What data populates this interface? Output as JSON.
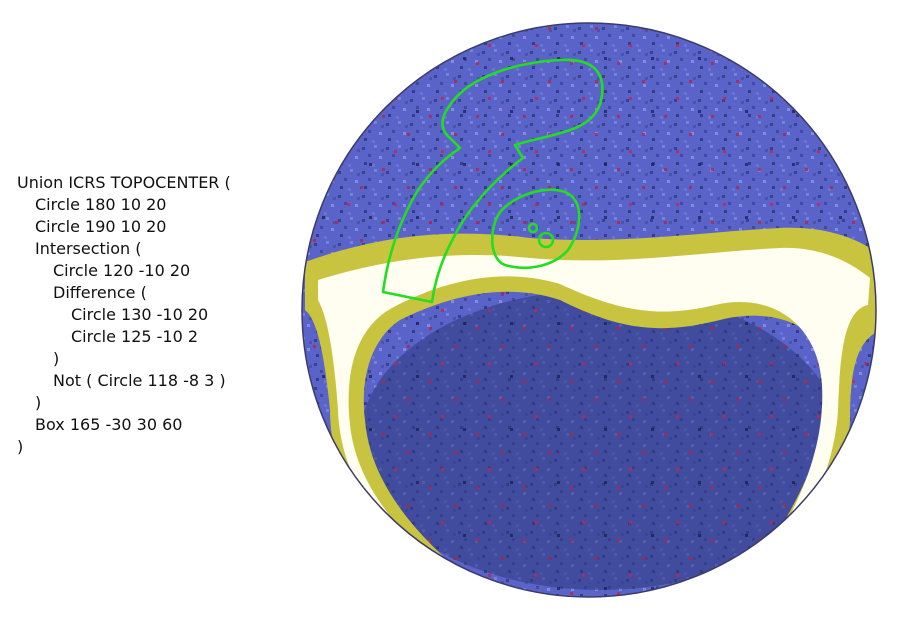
{
  "stc_lines": [
    {
      "indent": 0,
      "text": "Union ICRS TOPOCENTER ("
    },
    {
      "indent": 1,
      "text": "Circle 180 10 20"
    },
    {
      "indent": 1,
      "text": "Circle 190 10 20"
    },
    {
      "indent": 1,
      "text": "Intersection ("
    },
    {
      "indent": 2,
      "text": "Circle 120 -10 20"
    },
    {
      "indent": 2,
      "text": "Difference ("
    },
    {
      "indent": 3,
      "text": "Circle 130 -10 20"
    },
    {
      "indent": 3,
      "text": "Circle 125 -10 2"
    },
    {
      "indent": 2,
      "text": ")"
    },
    {
      "indent": 2,
      "text": "Not ( Circle 118 -8 3 )"
    },
    {
      "indent": 1,
      "text": ")"
    },
    {
      "indent": 1,
      "text": "Box 165 -30 30 60"
    },
    {
      "indent": 0,
      "text": ")"
    }
  ],
  "colors": {
    "sky_background": "#5a63c8",
    "sky_dark": "#2e3a7e",
    "galactic_band": "#fffef0",
    "band_edge": "#c8c440",
    "region_outline": "#22dd22",
    "noise_red": "#c0203a"
  }
}
